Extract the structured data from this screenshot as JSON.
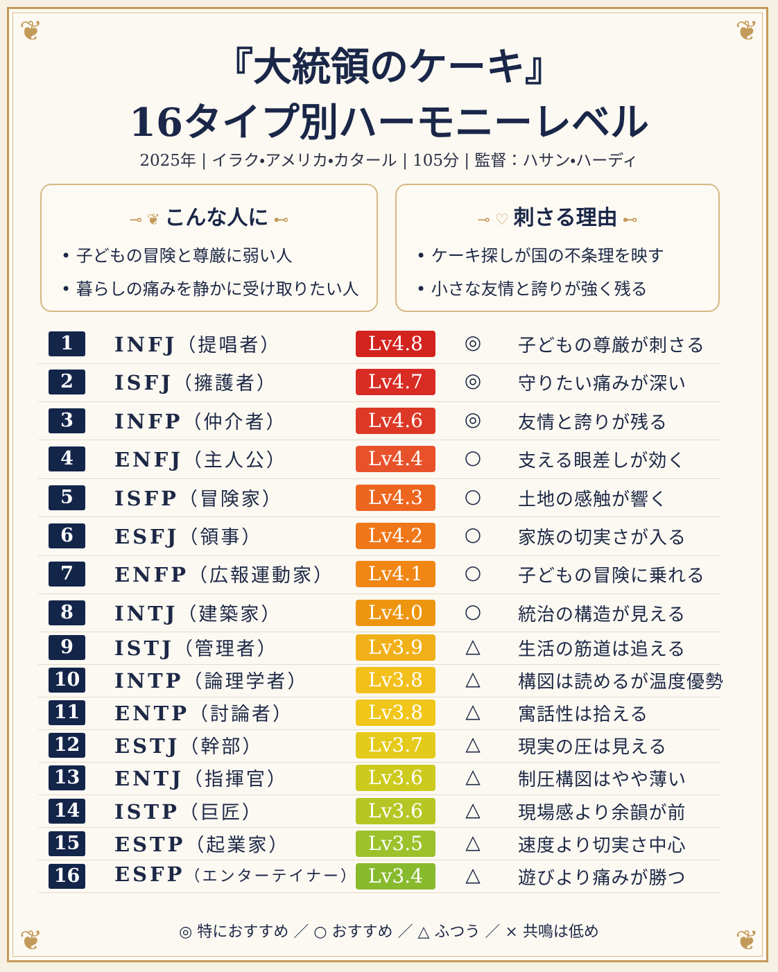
{
  "header": {
    "title_line1": "『大統領のケーキ』",
    "title_line2": "16タイプ別ハーモニーレベル",
    "subtitle": "2025年 | イラク・アメリカ・カタール | 105分 | 監督：ハサン・ハーディ"
  },
  "boxes": [
    {
      "title": "こんな人に",
      "items": [
        "子どもの冒険と尊厳に弱い人",
        "暮らしの痛みを静かに受け取りたい人"
      ]
    },
    {
      "title": "刺さる理由",
      "items": [
        "ケーキ探しが国の不条理を映す",
        "小さな友情と誇りが強く残る"
      ]
    }
  ],
  "table": {
    "rows": [
      {
        "rank": 1,
        "type": "INFJ",
        "role": "（提唱者）",
        "level": "Lv4.8",
        "level_color": "#d3231f",
        "mark": "◎",
        "comment": "子どもの尊厳が刺さる"
      },
      {
        "rank": 2,
        "type": "ISFJ",
        "role": "（擁護者）",
        "level": "Lv4.7",
        "level_color": "#d82c25",
        "mark": "◎",
        "comment": "守りたい痛みが深い"
      },
      {
        "rank": 3,
        "type": "INFP",
        "role": "（仲介者）",
        "level": "Lv4.6",
        "level_color": "#dd3826",
        "mark": "◎",
        "comment": "友情と誇りが残る"
      },
      {
        "rank": 4,
        "type": "ENFJ",
        "role": "（主人公）",
        "level": "Lv4.4",
        "level_color": "#e8522a",
        "mark": "○",
        "comment": "支える眼差しが効く"
      },
      {
        "rank": 5,
        "type": "ISFP",
        "role": "（冒険家）",
        "level": "Lv4.3",
        "level_color": "#ed661f",
        "mark": "○",
        "comment": "土地の感触が響く"
      },
      {
        "rank": 6,
        "type": "ESFJ",
        "role": "（領事）",
        "level": "Lv4.2",
        "level_color": "#ef771a",
        "mark": "○",
        "comment": "家族の切実さが入る"
      },
      {
        "rank": 7,
        "type": "ENFP",
        "role": "（広報運動家）",
        "level": "Lv4.1",
        "level_color": "#f08614",
        "mark": "○",
        "comment": "子どもの冒険に乗れる"
      },
      {
        "rank": 8,
        "type": "INTJ",
        "role": "（建築家）",
        "level": "Lv4.0",
        "level_color": "#ee9510",
        "mark": "○",
        "comment": "統治の構造が見える"
      },
      {
        "rank": 9,
        "type": "ISTJ",
        "role": "（管理者）",
        "level": "Lv3.9",
        "level_color": "#f1b018",
        "mark": "△",
        "comment": "生活の筋道は追える"
      },
      {
        "rank": 10,
        "type": "INTP",
        "role": "（論理学者）",
        "level": "Lv3.8",
        "level_color": "#f3bf1a",
        "mark": "△",
        "comment": "構図は読めるが温度優勢"
      },
      {
        "rank": 11,
        "type": "ENTP",
        "role": "（討論者）",
        "level": "Lv3.8",
        "level_color": "#f0c61a",
        "mark": "△",
        "comment": "寓話性は拾える"
      },
      {
        "rank": 12,
        "type": "ESTJ",
        "role": "（幹部）",
        "level": "Lv3.7",
        "level_color": "#e4cb1b",
        "mark": "△",
        "comment": "現実の圧は見える"
      },
      {
        "rank": 13,
        "type": "ENTJ",
        "role": "（指揮官）",
        "level": "Lv3.6",
        "level_color": "#cdca1e",
        "mark": "△",
        "comment": "制圧構図はやや薄い"
      },
      {
        "rank": 14,
        "type": "ISTP",
        "role": "（巨匠）",
        "level": "Lv3.6",
        "level_color": "#b5c624",
        "mark": "△",
        "comment": "現場感より余韻が前"
      },
      {
        "rank": 15,
        "type": "ESTP",
        "role": "（起業家）",
        "level": "Lv3.5",
        "level_color": "#9cc12a",
        "mark": "△",
        "comment": "速度より切実さ中心"
      },
      {
        "rank": 16,
        "type": "ESFP",
        "role": "（エンターテイナー）",
        "level": "Lv3.4",
        "level_color": "#88ba2e",
        "mark": "△",
        "comment": "遊びより痛みが勝つ"
      }
    ]
  },
  "footer": {
    "legend": "◎ 特におすすめ ／ ○ おすすめ ／ △ ふつう ／ × 共鳴は低め"
  }
}
